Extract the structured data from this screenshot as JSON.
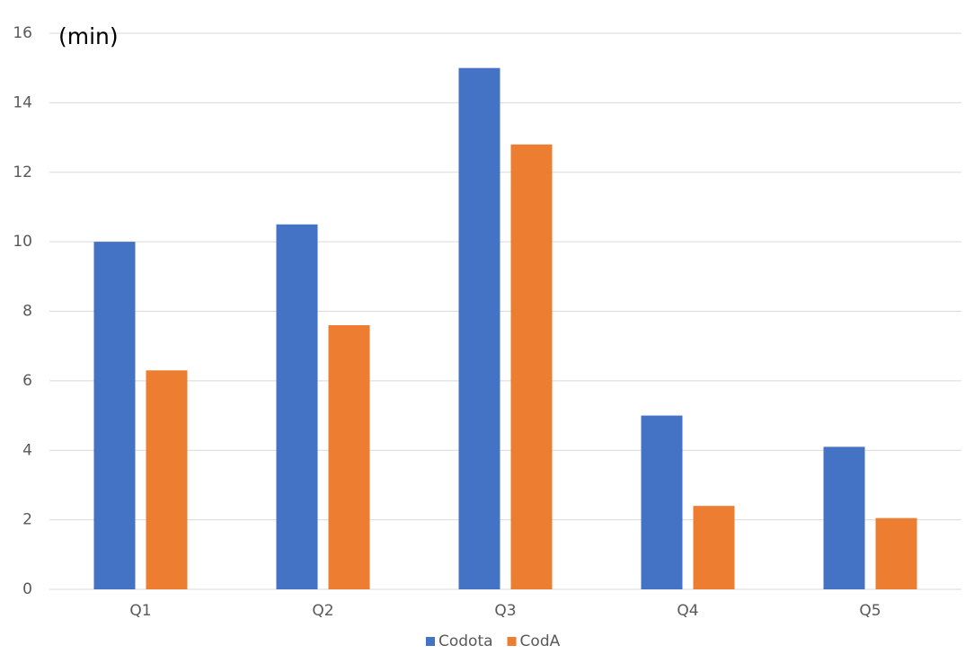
{
  "chart_data": {
    "type": "bar",
    "annotation": "(min)",
    "categories": [
      "Q1",
      "Q2",
      "Q3",
      "Q4",
      "Q5"
    ],
    "series": [
      {
        "name": "Codota",
        "color": "#4472c4",
        "values": [
          10,
          10.5,
          15,
          5,
          4.1
        ]
      },
      {
        "name": "CodA",
        "color": "#ed7d31",
        "values": [
          6.3,
          7.6,
          12.8,
          2.4,
          2.05
        ]
      }
    ],
    "ylim": [
      0,
      16
    ],
    "yticks": [
      0,
      2,
      4,
      6,
      8,
      10,
      12,
      14,
      16
    ],
    "grid": true,
    "legend": "bottom"
  }
}
